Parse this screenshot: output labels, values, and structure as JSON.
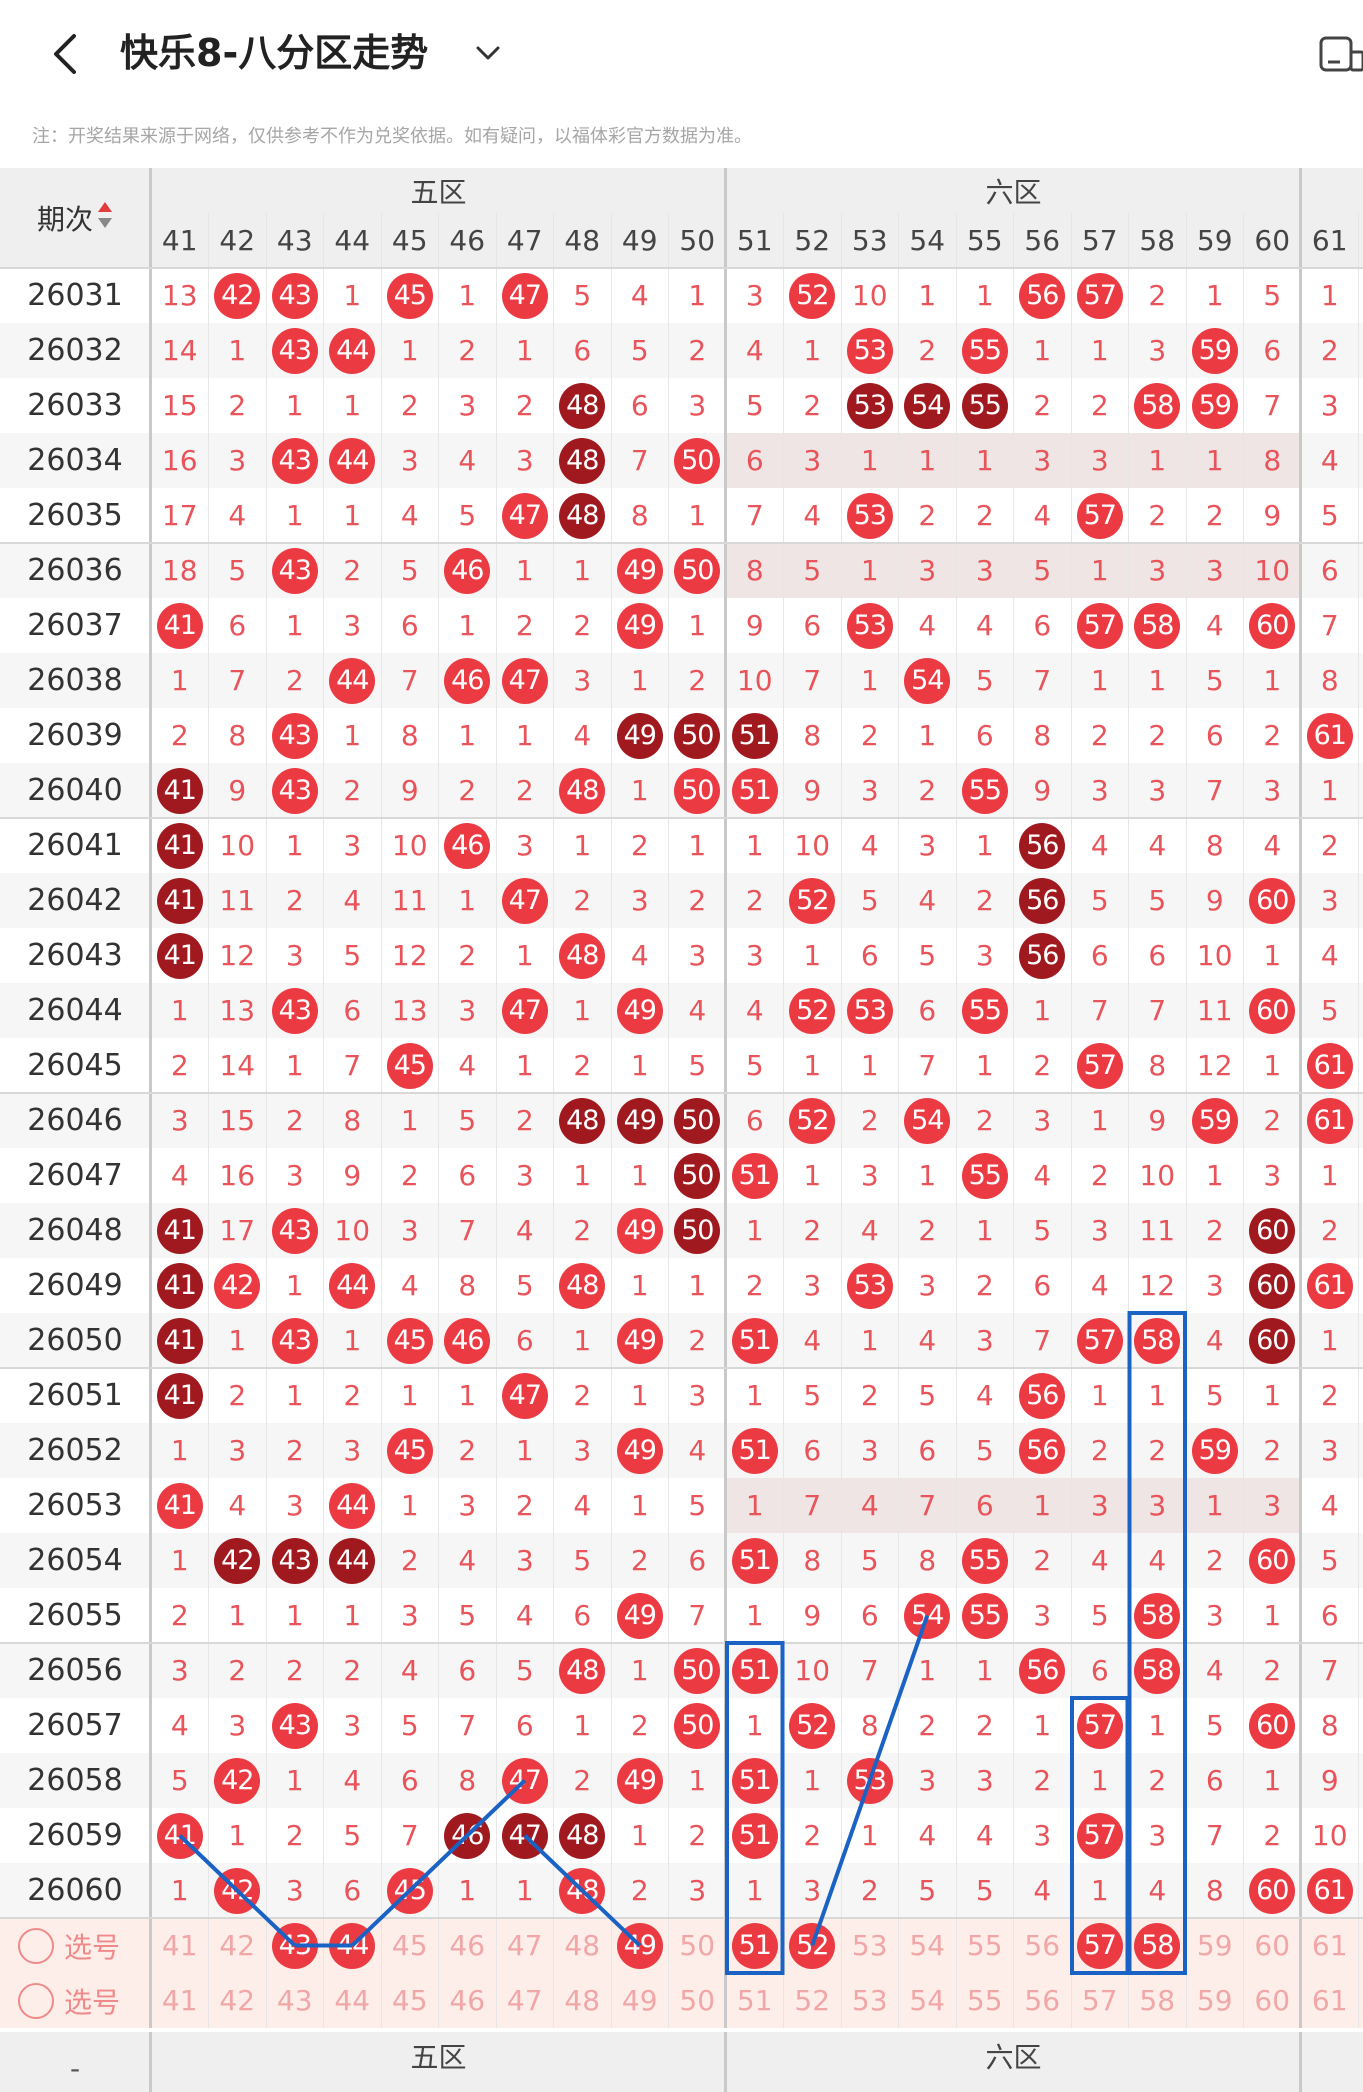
{
  "header": {
    "title": "快乐8-八分区走势"
  },
  "note": "注：开奖结果来源于网络，仅供参考不作为兑奖依据。如有疑问，以福体彩官方数据为准。",
  "table": {
    "period_label": "期次",
    "zones": [
      "五区",
      "六区"
    ],
    "columns": [
      41,
      42,
      43,
      44,
      45,
      46,
      47,
      48,
      49,
      50,
      51,
      52,
      53,
      54,
      55,
      56,
      57,
      58,
      59,
      60,
      61
    ],
    "rows": [
      {
        "p": "26031",
        "c": [
          "13",
          "r42",
          "r43",
          "1",
          "r45",
          "1",
          "r47",
          "5",
          "4",
          "1",
          "3",
          "r52",
          "10",
          "1",
          "1",
          "r56",
          "r57",
          "2",
          "1",
          "5",
          "1"
        ]
      },
      {
        "p": "26032",
        "c": [
          "14",
          "1",
          "r43",
          "r44",
          "1",
          "2",
          "1",
          "6",
          "5",
          "2",
          "4",
          "1",
          "r53",
          "2",
          "r55",
          "1",
          "1",
          "3",
          "r59",
          "6",
          "2"
        ]
      },
      {
        "p": "26033",
        "c": [
          "15",
          "2",
          "1",
          "1",
          "2",
          "3",
          "2",
          "d48",
          "6",
          "3",
          "5",
          "2",
          "d53",
          "d54",
          "d55",
          "2",
          "2",
          "r58",
          "r59",
          "7",
          "3"
        ]
      },
      {
        "p": "26034",
        "c": [
          "16",
          "3",
          "r43",
          "r44",
          "3",
          "4",
          "3",
          "d48",
          "7",
          "r50",
          "6",
          "3",
          "1",
          "1",
          "1",
          "3",
          "3",
          "1",
          "1",
          "8",
          "4"
        ]
      },
      {
        "p": "26035",
        "c": [
          "17",
          "4",
          "1",
          "1",
          "4",
          "5",
          "r47",
          "d48",
          "8",
          "1",
          "7",
          "4",
          "r53",
          "2",
          "2",
          "4",
          "r57",
          "2",
          "2",
          "9",
          "5"
        ]
      },
      {
        "p": "26036",
        "c": [
          "18",
          "5",
          "r43",
          "2",
          "5",
          "r46",
          "1",
          "1",
          "r49",
          "r50",
          "8",
          "5",
          "1",
          "3",
          "3",
          "5",
          "1",
          "3",
          "3",
          "10",
          "6"
        ]
      },
      {
        "p": "26037",
        "c": [
          "r41",
          "6",
          "1",
          "3",
          "6",
          "1",
          "2",
          "2",
          "r49",
          "1",
          "9",
          "6",
          "r53",
          "4",
          "4",
          "6",
          "r57",
          "r58",
          "4",
          "r60",
          "7"
        ]
      },
      {
        "p": "26038",
        "c": [
          "1",
          "7",
          "2",
          "r44",
          "7",
          "r46",
          "r47",
          "3",
          "1",
          "2",
          "10",
          "7",
          "1",
          "r54",
          "5",
          "7",
          "1",
          "1",
          "5",
          "1",
          "8"
        ]
      },
      {
        "p": "26039",
        "c": [
          "2",
          "8",
          "r43",
          "1",
          "8",
          "1",
          "1",
          "4",
          "d49",
          "d50",
          "d51",
          "8",
          "2",
          "1",
          "6",
          "8",
          "2",
          "2",
          "6",
          "2",
          "r61"
        ]
      },
      {
        "p": "26040",
        "c": [
          "d41",
          "9",
          "r43",
          "2",
          "9",
          "2",
          "2",
          "r48",
          "1",
          "r50",
          "r51",
          "9",
          "3",
          "2",
          "r55",
          "9",
          "3",
          "3",
          "7",
          "3",
          "1"
        ]
      },
      {
        "p": "26041",
        "c": [
          "d41",
          "10",
          "1",
          "3",
          "10",
          "r46",
          "3",
          "1",
          "2",
          "1",
          "1",
          "10",
          "4",
          "3",
          "1",
          "d56",
          "4",
          "4",
          "8",
          "4",
          "2"
        ]
      },
      {
        "p": "26042",
        "c": [
          "d41",
          "11",
          "2",
          "4",
          "11",
          "1",
          "r47",
          "2",
          "3",
          "2",
          "2",
          "r52",
          "5",
          "4",
          "2",
          "d56",
          "5",
          "5",
          "9",
          "r60",
          "3"
        ]
      },
      {
        "p": "26043",
        "c": [
          "d41",
          "12",
          "3",
          "5",
          "12",
          "2",
          "1",
          "r48",
          "4",
          "3",
          "3",
          "1",
          "6",
          "5",
          "3",
          "d56",
          "6",
          "6",
          "10",
          "1",
          "4"
        ]
      },
      {
        "p": "26044",
        "c": [
          "1",
          "13",
          "r43",
          "6",
          "13",
          "3",
          "r47",
          "1",
          "r49",
          "4",
          "4",
          "r52",
          "r53",
          "6",
          "r55",
          "1",
          "7",
          "7",
          "11",
          "r60",
          "5"
        ]
      },
      {
        "p": "26045",
        "c": [
          "2",
          "14",
          "1",
          "7",
          "r45",
          "4",
          "1",
          "2",
          "1",
          "5",
          "5",
          "1",
          "1",
          "7",
          "1",
          "2",
          "r57",
          "8",
          "12",
          "1",
          "r61"
        ]
      },
      {
        "p": "26046",
        "c": [
          "3",
          "15",
          "2",
          "8",
          "1",
          "5",
          "2",
          "d48",
          "d49",
          "d50",
          "6",
          "r52",
          "2",
          "r54",
          "2",
          "3",
          "1",
          "9",
          "r59",
          "2",
          "r61"
        ]
      },
      {
        "p": "26047",
        "c": [
          "4",
          "16",
          "3",
          "9",
          "2",
          "6",
          "3",
          "1",
          "1",
          "d50",
          "r51",
          "1",
          "3",
          "1",
          "r55",
          "4",
          "2",
          "10",
          "1",
          "3",
          "1"
        ]
      },
      {
        "p": "26048",
        "c": [
          "d41",
          "17",
          "r43",
          "10",
          "3",
          "7",
          "4",
          "2",
          "r49",
          "d50",
          "1",
          "2",
          "4",
          "2",
          "1",
          "5",
          "3",
          "11",
          "2",
          "d60",
          "2"
        ]
      },
      {
        "p": "26049",
        "c": [
          "d41",
          "r42",
          "1",
          "r44",
          "4",
          "8",
          "5",
          "r48",
          "1",
          "1",
          "2",
          "3",
          "r53",
          "3",
          "2",
          "6",
          "4",
          "12",
          "3",
          "d60",
          "r61"
        ]
      },
      {
        "p": "26050",
        "c": [
          "d41",
          "1",
          "r43",
          "1",
          "r45",
          "r46",
          "6",
          "1",
          "r49",
          "2",
          "r51",
          "4",
          "1",
          "4",
          "3",
          "7",
          "r57",
          "r58",
          "4",
          "d60",
          "1"
        ]
      },
      {
        "p": "26051",
        "c": [
          "d41",
          "2",
          "1",
          "2",
          "1",
          "1",
          "r47",
          "2",
          "1",
          "3",
          "1",
          "5",
          "2",
          "5",
          "4",
          "r56",
          "1",
          "1",
          "5",
          "1",
          "2"
        ]
      },
      {
        "p": "26052",
        "c": [
          "1",
          "3",
          "2",
          "3",
          "r45",
          "2",
          "1",
          "3",
          "r49",
          "4",
          "r51",
          "6",
          "3",
          "6",
          "5",
          "r56",
          "2",
          "2",
          "r59",
          "2",
          "3"
        ]
      },
      {
        "p": "26053",
        "c": [
          "r41",
          "4",
          "3",
          "r44",
          "1",
          "3",
          "2",
          "4",
          "1",
          "5",
          "1",
          "7",
          "4",
          "7",
          "6",
          "1",
          "3",
          "3",
          "1",
          "3",
          "4"
        ]
      },
      {
        "p": "26054",
        "c": [
          "1",
          "d42",
          "d43",
          "d44",
          "2",
          "4",
          "3",
          "5",
          "2",
          "6",
          "r51",
          "8",
          "5",
          "8",
          "r55",
          "2",
          "4",
          "4",
          "2",
          "r60",
          "5"
        ]
      },
      {
        "p": "26055",
        "c": [
          "2",
          "1",
          "1",
          "1",
          "3",
          "5",
          "4",
          "6",
          "r49",
          "7",
          "1",
          "9",
          "6",
          "r54",
          "r55",
          "3",
          "5",
          "r58",
          "3",
          "1",
          "6"
        ]
      },
      {
        "p": "26056",
        "c": [
          "3",
          "2",
          "2",
          "2",
          "4",
          "6",
          "5",
          "r48",
          "1",
          "r50",
          "r51",
          "10",
          "7",
          "1",
          "1",
          "r56",
          "6",
          "r58",
          "4",
          "2",
          "7"
        ]
      },
      {
        "p": "26057",
        "c": [
          "4",
          "3",
          "r43",
          "3",
          "5",
          "7",
          "6",
          "1",
          "2",
          "r50",
          "1",
          "r52",
          "8",
          "2",
          "2",
          "1",
          "r57",
          "1",
          "5",
          "r60",
          "8"
        ]
      },
      {
        "p": "26058",
        "c": [
          "5",
          "r42",
          "1",
          "4",
          "6",
          "8",
          "r47",
          "2",
          "r49",
          "1",
          "r51",
          "1",
          "r53",
          "3",
          "3",
          "2",
          "1",
          "2",
          "6",
          "1",
          "9"
        ]
      },
      {
        "p": "26059",
        "c": [
          "r41",
          "1",
          "2",
          "5",
          "7",
          "d46",
          "d47",
          "d48",
          "1",
          "2",
          "r51",
          "2",
          "1",
          "4",
          "4",
          "3",
          "r57",
          "3",
          "7",
          "2",
          "10"
        ]
      },
      {
        "p": "26060",
        "c": [
          "1",
          "r42",
          "3",
          "6",
          "r45",
          "1",
          "1",
          "r48",
          "2",
          "3",
          "1",
          "3",
          "2",
          "5",
          "5",
          "4",
          "1",
          "4",
          "8",
          "r60",
          "r61"
        ]
      }
    ],
    "select_rows": [
      {
        "label": "选号",
        "c": [
          "41",
          "42",
          "r43",
          "r44",
          "45",
          "46",
          "47",
          "48",
          "r49",
          "50",
          "r51",
          "r52",
          "53",
          "54",
          "55",
          "56",
          "r57",
          "r58",
          "59",
          "60",
          "61"
        ]
      },
      {
        "label": "选号",
        "c": [
          "41",
          "42",
          "43",
          "44",
          "45",
          "46",
          "47",
          "48",
          "49",
          "50",
          "51",
          "52",
          "53",
          "54",
          "55",
          "56",
          "57",
          "58",
          "59",
          "60",
          "61"
        ]
      }
    ],
    "footer_left": "-"
  },
  "colors": {
    "ball_red": "#ec3a43",
    "ball_dark": "#a0191f",
    "missing_text": "#e8545a",
    "line_blue": "#1a63c4",
    "header_bg": "#efefef",
    "select_bg": "#fdeee9"
  },
  "icons": [
    "back-arrow-icon",
    "chevron-down-icon",
    "toolbar-icon",
    "sort-arrows-icon",
    "radio-circle-icon"
  ]
}
